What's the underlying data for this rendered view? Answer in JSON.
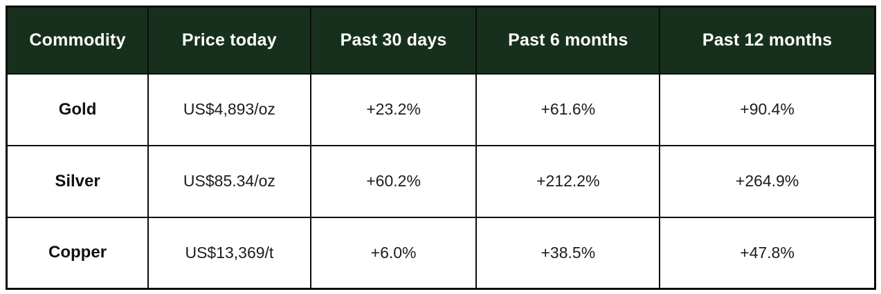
{
  "colors": {
    "header_background": "#17301d",
    "header_text": "#ffffff",
    "border": "#0c0c0c",
    "cell_text": "#1c1c1a",
    "page_background": "#ffffff"
  },
  "chart_data": {
    "type": "table",
    "columns": [
      "Commodity",
      "Price today",
      "Past 30 days",
      "Past 6 months",
      "Past 12 months"
    ],
    "rows": [
      [
        "Gold",
        "US$4,893/oz",
        "+23.2%",
        "+61.6%",
        "+90.4%"
      ],
      [
        "Silver",
        "US$85.34/oz",
        "+60.2%",
        "+212.2%",
        "+264.9%"
      ],
      [
        "Copper",
        "US$13,369/t",
        "+6.0%",
        "+38.5%",
        "+47.8%"
      ]
    ],
    "notes": {
      "percent_change_unit": "percent",
      "price_units": [
        "US$/oz",
        "US$/oz",
        "US$/t"
      ]
    }
  }
}
